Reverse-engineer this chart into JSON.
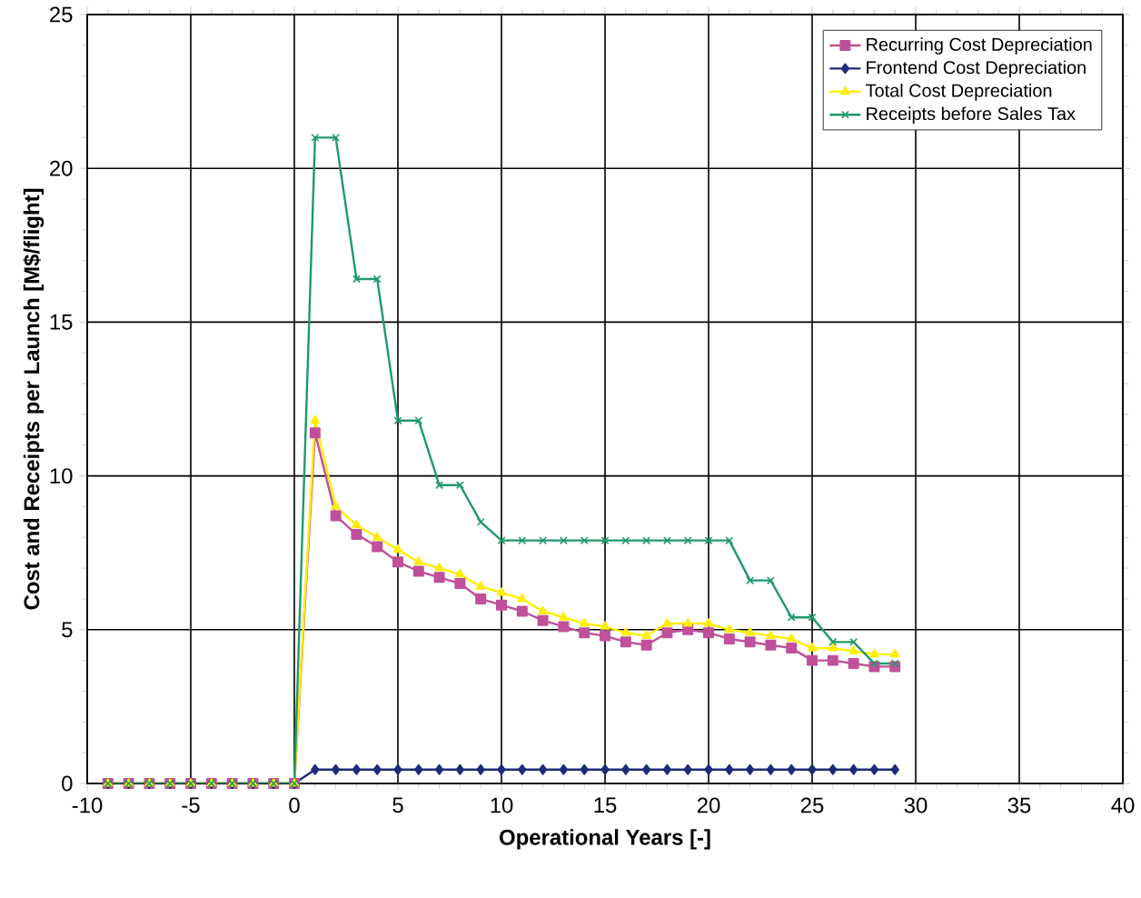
{
  "chart_data": {
    "type": "line",
    "xlabel": "Operational Years [-]",
    "ylabel": "Cost and Receipts per Launch [M$/flight]",
    "x": [
      -9,
      -8,
      -7,
      -6,
      -5,
      -4,
      -3,
      -2,
      -1,
      0,
      1,
      2,
      3,
      4,
      5,
      6,
      7,
      8,
      9,
      10,
      11,
      12,
      13,
      14,
      15,
      16,
      17,
      18,
      19,
      20,
      21,
      22,
      23,
      24,
      25,
      26,
      27,
      28,
      29
    ],
    "series": [
      {
        "name": "Recurring Cost Depreciation",
        "color": "#c0509a",
        "marker": "square",
        "values": [
          0,
          0,
          0,
          0,
          0,
          0,
          0,
          0,
          0,
          0,
          11.4,
          8.7,
          8.1,
          7.7,
          7.2,
          6.9,
          6.7,
          6.5,
          6.0,
          5.8,
          5.6,
          5.3,
          5.1,
          4.9,
          4.8,
          4.6,
          4.5,
          4.9,
          5.0,
          4.9,
          4.7,
          4.6,
          4.5,
          4.4,
          4.0,
          4.0,
          3.9,
          3.8,
          3.8
        ]
      },
      {
        "name": "Frontend Cost Depreciation",
        "color": "#1f2a7a",
        "marker": "diamond",
        "values": [
          0,
          0,
          0,
          0,
          0,
          0,
          0,
          0,
          0,
          0,
          0.45,
          0.45,
          0.45,
          0.45,
          0.45,
          0.45,
          0.45,
          0.45,
          0.45,
          0.45,
          0.45,
          0.45,
          0.45,
          0.45,
          0.45,
          0.45,
          0.45,
          0.45,
          0.45,
          0.45,
          0.45,
          0.45,
          0.45,
          0.45,
          0.45,
          0.45,
          0.45,
          0.45,
          0.45
        ]
      },
      {
        "name": "Total Cost Depreciation",
        "color": "#ffee00",
        "marker": "triangle",
        "values": [
          0,
          0,
          0,
          0,
          0,
          0,
          0,
          0,
          0,
          0,
          11.8,
          9.0,
          8.4,
          8.0,
          7.6,
          7.2,
          7.0,
          6.8,
          6.4,
          6.2,
          6.0,
          5.6,
          5.4,
          5.2,
          5.1,
          4.9,
          4.8,
          5.2,
          5.2,
          5.2,
          5.0,
          4.9,
          4.8,
          4.7,
          4.4,
          4.4,
          4.3,
          4.2,
          4.2
        ]
      },
      {
        "name": "Receipts before Sales Tax",
        "color": "#1e9a6a",
        "marker": "cross",
        "values": [
          0,
          0,
          0,
          0,
          0,
          0,
          0,
          0,
          0,
          0,
          21.0,
          21.0,
          16.4,
          16.4,
          11.8,
          11.8,
          9.7,
          9.7,
          8.5,
          7.9,
          7.9,
          7.9,
          7.9,
          7.9,
          7.9,
          7.9,
          7.9,
          7.9,
          7.9,
          7.9,
          7.9,
          6.6,
          6.6,
          5.4,
          5.4,
          4.6,
          4.6,
          3.9,
          3.9
        ]
      }
    ],
    "xlim": [
      -10,
      40
    ],
    "xticks": [
      -10,
      -5,
      0,
      5,
      10,
      15,
      20,
      25,
      30,
      35,
      40
    ],
    "ylim": [
      0,
      25
    ],
    "yticks": [
      0,
      5,
      10,
      15,
      20,
      25
    ],
    "grid": true,
    "legend": "top right"
  }
}
